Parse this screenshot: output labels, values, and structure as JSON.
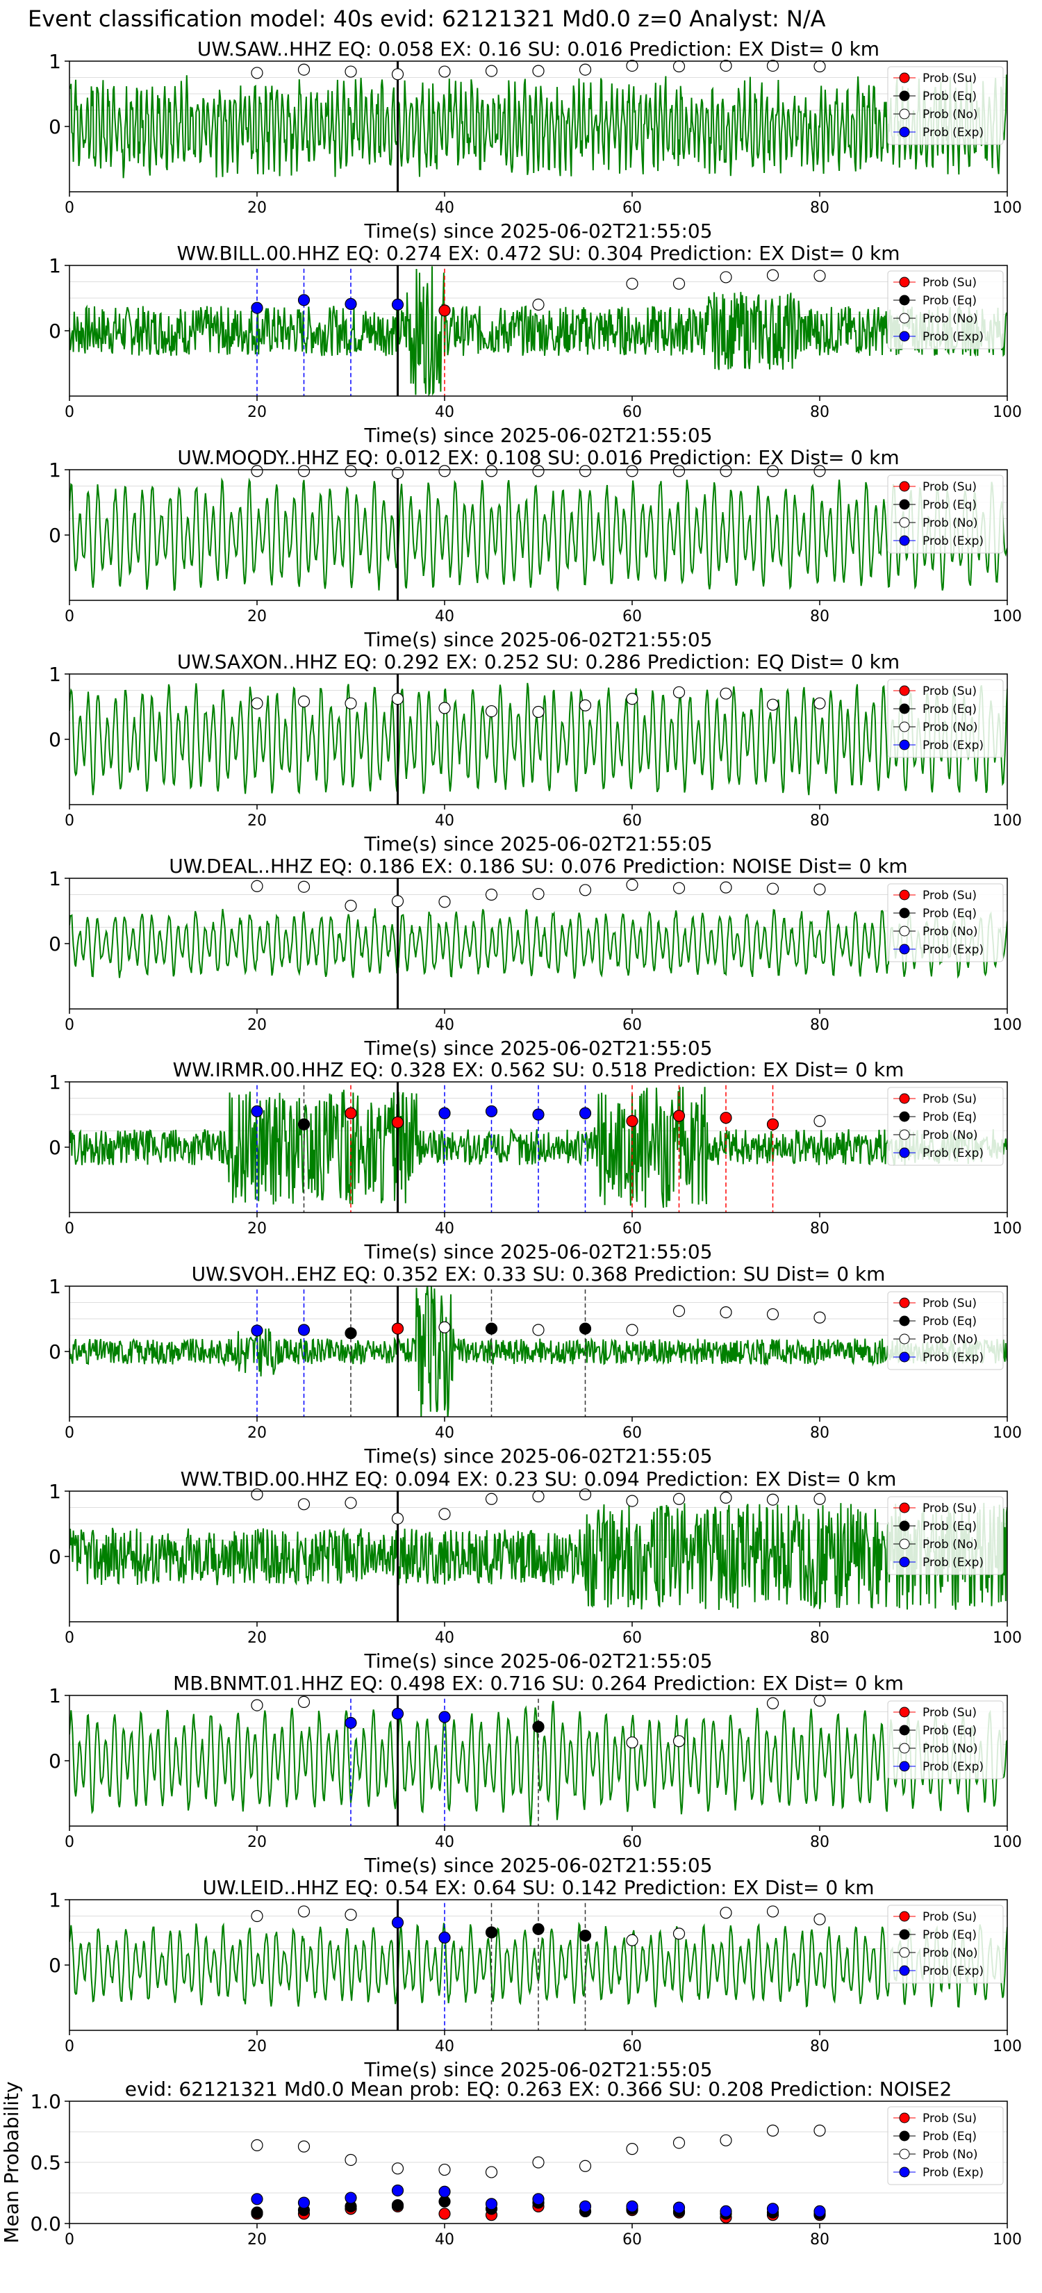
{
  "figure_title": "Event classification model: 40s evid: 62121321 Md0.0 z=0 Analyst: N/A",
  "legend_labels": [
    "Prob (Su)",
    "Prob (Eq)",
    "Prob (No)",
    "Prob (Exp)"
  ],
  "colors": {
    "trace": "#008000",
    "su": "#ff0000",
    "eq": "#000000",
    "no": "#ffffff",
    "exp": "#0000ff",
    "su_line": "#ff0000",
    "eq_line": "#333333",
    "exp_line": "#0000ff",
    "event_line": "#000000"
  },
  "chart_data": [
    {
      "type": "line",
      "title": "UW.SAW..HHZ   EQ: 0.058  EX: 0.16  SU: 0.016   Prediction: EX    Dist= 0 km",
      "xlabel": "Time(s) since 2025-06-02T21:55:05",
      "ylabel": "",
      "xlim": [
        0,
        100
      ],
      "ylim": [
        -1,
        1
      ],
      "xticks": [
        0,
        20,
        40,
        60,
        80,
        100
      ],
      "yticks": [
        0,
        1
      ],
      "event_time": 35,
      "grid": true,
      "legend": "top-right",
      "trace": {
        "kind": "medium",
        "amp": 0.7,
        "seed": 3
      },
      "points": [
        {
          "x": 20,
          "no": 0.82
        },
        {
          "x": 25,
          "no": 0.87
        },
        {
          "x": 30,
          "no": 0.84
        },
        {
          "x": 35,
          "no": 0.8
        },
        {
          "x": 40,
          "no": 0.84
        },
        {
          "x": 45,
          "no": 0.85
        },
        {
          "x": 50,
          "no": 0.85
        },
        {
          "x": 55,
          "no": 0.87
        },
        {
          "x": 60,
          "no": 0.93
        },
        {
          "x": 65,
          "no": 0.92
        },
        {
          "x": 70,
          "no": 0.93
        },
        {
          "x": 75,
          "no": 0.93
        },
        {
          "x": 80,
          "no": 0.92
        }
      ],
      "markers": []
    },
    {
      "type": "line",
      "title": "WW.BILL.00.HHZ   EQ: 0.274  EX: 0.472  SU: 0.304   Prediction: EX    Dist= 0 km",
      "xlabel": "Time(s) since 2025-06-02T21:55:05",
      "ylabel": "",
      "xlim": [
        0,
        100
      ],
      "ylim": [
        -1,
        1
      ],
      "xticks": [
        0,
        20,
        40,
        60,
        80,
        100
      ],
      "yticks": [
        0,
        1
      ],
      "event_time": 35,
      "grid": true,
      "legend": "top-right",
      "trace": {
        "kind": "noisy",
        "amp": 0.35,
        "seed": 7,
        "burst": [
          36,
          40,
          0.9
        ],
        "burst2": [
          68,
          78,
          0.55
        ]
      },
      "points": [
        {
          "x": 20,
          "exp": 0.35
        },
        {
          "x": 25,
          "exp": 0.47
        },
        {
          "x": 30,
          "exp": 0.41
        },
        {
          "x": 35,
          "exp": 0.4
        },
        {
          "x": 40,
          "su": 0.31
        },
        {
          "x": 50,
          "no": 0.4
        },
        {
          "x": 60,
          "no": 0.72
        },
        {
          "x": 65,
          "no": 0.72
        },
        {
          "x": 70,
          "no": 0.82
        },
        {
          "x": 75,
          "no": 0.85
        },
        {
          "x": 80,
          "no": 0.84
        }
      ],
      "markers": [
        {
          "x": 20,
          "cls": "exp"
        },
        {
          "x": 25,
          "cls": "exp"
        },
        {
          "x": 30,
          "cls": "exp"
        },
        {
          "x": 40,
          "cls": "su"
        }
      ]
    },
    {
      "type": "line",
      "title": "UW.MOODY..HHZ   EQ: 0.012  EX: 0.108  SU: 0.016   Prediction: EX    Dist= 0 km",
      "xlabel": "Time(s) since 2025-06-02T21:55:05",
      "ylabel": "",
      "xlim": [
        0,
        100
      ],
      "ylim": [
        -1,
        1
      ],
      "xticks": [
        0,
        20,
        40,
        60,
        80,
        100
      ],
      "yticks": [
        0,
        1
      ],
      "event_time": 35,
      "grid": true,
      "legend": "top-right",
      "trace": {
        "kind": "smooth",
        "amp": 0.75,
        "seed": 11
      },
      "points": [
        {
          "x": 20,
          "no": 0.98
        },
        {
          "x": 25,
          "no": 0.98
        },
        {
          "x": 30,
          "no": 0.98
        },
        {
          "x": 35,
          "no": 0.95
        },
        {
          "x": 40,
          "no": 0.98
        },
        {
          "x": 45,
          "no": 0.98
        },
        {
          "x": 50,
          "no": 0.98
        },
        {
          "x": 55,
          "no": 0.98
        },
        {
          "x": 60,
          "no": 0.98
        },
        {
          "x": 65,
          "no": 0.98
        },
        {
          "x": 70,
          "no": 0.98
        },
        {
          "x": 75,
          "no": 0.98
        },
        {
          "x": 80,
          "no": 0.98
        }
      ],
      "markers": []
    },
    {
      "type": "line",
      "title": "UW.SAXON..HHZ   EQ: 0.292  EX: 0.252  SU: 0.286   Prediction: EQ    Dist= 0 km",
      "xlabel": "Time(s) since 2025-06-02T21:55:05",
      "ylabel": "",
      "xlim": [
        0,
        100
      ],
      "ylim": [
        -1,
        1
      ],
      "xticks": [
        0,
        20,
        40,
        60,
        80,
        100
      ],
      "yticks": [
        0,
        1
      ],
      "event_time": 35,
      "grid": true,
      "legend": "top-right",
      "trace": {
        "kind": "smooth",
        "amp": 0.75,
        "seed": 19
      },
      "points": [
        {
          "x": 20,
          "no": 0.55
        },
        {
          "x": 25,
          "no": 0.58
        },
        {
          "x": 30,
          "no": 0.55
        },
        {
          "x": 35,
          "no": 0.62
        },
        {
          "x": 40,
          "no": 0.48
        },
        {
          "x": 45,
          "no": 0.43
        },
        {
          "x": 50,
          "no": 0.42
        },
        {
          "x": 55,
          "no": 0.52
        },
        {
          "x": 60,
          "no": 0.62
        },
        {
          "x": 65,
          "no": 0.72
        },
        {
          "x": 70,
          "no": 0.7
        },
        {
          "x": 75,
          "no": 0.53
        },
        {
          "x": 80,
          "no": 0.55
        }
      ],
      "markers": []
    },
    {
      "type": "line",
      "title": "UW.DEAL..HHZ   EQ: 0.186  EX: 0.186  SU: 0.076   Prediction: NOISE    Dist= 0 km",
      "xlabel": "Time(s) since 2025-06-02T21:55:05",
      "ylabel": "",
      "xlim": [
        0,
        100
      ],
      "ylim": [
        -1,
        1
      ],
      "xticks": [
        0,
        20,
        40,
        60,
        80,
        100
      ],
      "yticks": [
        0,
        1
      ],
      "event_time": 35,
      "grid": true,
      "legend": "top-right",
      "trace": {
        "kind": "smooth",
        "amp": 0.45,
        "seed": 23
      },
      "points": [
        {
          "x": 20,
          "no": 0.88
        },
        {
          "x": 25,
          "no": 0.87
        },
        {
          "x": 30,
          "no": 0.58
        },
        {
          "x": 35,
          "no": 0.65
        },
        {
          "x": 40,
          "no": 0.64
        },
        {
          "x": 45,
          "no": 0.75
        },
        {
          "x": 50,
          "no": 0.76
        },
        {
          "x": 55,
          "no": 0.82
        },
        {
          "x": 60,
          "no": 0.9
        },
        {
          "x": 65,
          "no": 0.85
        },
        {
          "x": 70,
          "no": 0.86
        },
        {
          "x": 75,
          "no": 0.84
        },
        {
          "x": 80,
          "no": 0.83
        }
      ],
      "markers": []
    },
    {
      "type": "line",
      "title": "WW.IRMR.00.HHZ   EQ: 0.328  EX: 0.562  SU: 0.518   Prediction: EX    Dist= 0 km",
      "xlabel": "Time(s) since 2025-06-02T21:55:05",
      "ylabel": "",
      "xlim": [
        0,
        100
      ],
      "ylim": [
        -1,
        1
      ],
      "xticks": [
        0,
        20,
        40,
        60,
        80,
        100
      ],
      "yticks": [
        0,
        1
      ],
      "event_time": 35,
      "grid": true,
      "legend": "top-right",
      "trace": {
        "kind": "noisy",
        "amp": 0.25,
        "seed": 29,
        "burst": [
          17,
          37,
          0.8
        ],
        "burst2": [
          56,
          68,
          0.85
        ]
      },
      "points": [
        {
          "x": 20,
          "exp": 0.55
        },
        {
          "x": 25,
          "eq": 0.35
        },
        {
          "x": 30,
          "su": 0.52
        },
        {
          "x": 35,
          "su": 0.38
        },
        {
          "x": 40,
          "exp": 0.52
        },
        {
          "x": 45,
          "exp": 0.55
        },
        {
          "x": 50,
          "exp": 0.5
        },
        {
          "x": 55,
          "exp": 0.52
        },
        {
          "x": 60,
          "su": 0.4
        },
        {
          "x": 65,
          "su": 0.48
        },
        {
          "x": 70,
          "su": 0.45
        },
        {
          "x": 75,
          "su": 0.35
        },
        {
          "x": 80,
          "no": 0.4
        }
      ],
      "markers": [
        {
          "x": 20,
          "cls": "exp"
        },
        {
          "x": 25,
          "cls": "eq"
        },
        {
          "x": 30,
          "cls": "su"
        },
        {
          "x": 40,
          "cls": "exp"
        },
        {
          "x": 45,
          "cls": "exp"
        },
        {
          "x": 50,
          "cls": "exp"
        },
        {
          "x": 55,
          "cls": "exp"
        },
        {
          "x": 60,
          "cls": "su"
        },
        {
          "x": 65,
          "cls": "su"
        },
        {
          "x": 70,
          "cls": "su"
        },
        {
          "x": 75,
          "cls": "su"
        }
      ]
    },
    {
      "type": "line",
      "title": "UW.SVOH..EHZ   EQ: 0.352  EX: 0.33  SU: 0.368   Prediction: SU    Dist= 0 km",
      "xlabel": "Time(s) since 2025-06-02T21:55:05",
      "ylabel": "",
      "xlim": [
        0,
        100
      ],
      "ylim": [
        -1,
        1
      ],
      "xticks": [
        0,
        20,
        40,
        60,
        80,
        100
      ],
      "yticks": [
        0,
        1
      ],
      "event_time": 35,
      "grid": true,
      "legend": "top-right",
      "trace": {
        "kind": "noisy",
        "amp": 0.18,
        "seed": 31,
        "burst": [
          37,
          41,
          0.95
        ],
        "burst2": [
          18,
          22,
          0.35
        ]
      },
      "points": [
        {
          "x": 20,
          "exp": 0.32
        },
        {
          "x": 25,
          "exp": 0.33
        },
        {
          "x": 30,
          "eq": 0.28
        },
        {
          "x": 35,
          "su": 0.35
        },
        {
          "x": 40,
          "no": 0.37
        },
        {
          "x": 45,
          "eq": 0.35
        },
        {
          "x": 50,
          "no": 0.33
        },
        {
          "x": 55,
          "eq": 0.35
        },
        {
          "x": 60,
          "no": 0.33
        },
        {
          "x": 65,
          "no": 0.62
        },
        {
          "x": 70,
          "no": 0.6
        },
        {
          "x": 75,
          "no": 0.57
        },
        {
          "x": 80,
          "no": 0.52
        }
      ],
      "markers": [
        {
          "x": 20,
          "cls": "exp"
        },
        {
          "x": 25,
          "cls": "exp"
        },
        {
          "x": 30,
          "cls": "eq"
        },
        {
          "x": 45,
          "cls": "eq"
        },
        {
          "x": 55,
          "cls": "eq"
        }
      ]
    },
    {
      "type": "line",
      "title": "WW.TBID.00.HHZ   EQ: 0.094  EX: 0.23  SU: 0.094   Prediction: EX    Dist= 0 km",
      "xlabel": "Time(s) since 2025-06-02T21:55:05",
      "ylabel": "",
      "xlim": [
        0,
        100
      ],
      "ylim": [
        -1,
        1
      ],
      "xticks": [
        0,
        20,
        40,
        60,
        80,
        100
      ],
      "yticks": [
        0,
        1
      ],
      "event_time": 35,
      "grid": true,
      "legend": "top-right",
      "trace": {
        "kind": "noisy",
        "amp": 0.4,
        "seed": 37,
        "burst": [
          55,
          100,
          0.75
        ]
      },
      "points": [
        {
          "x": 20,
          "no": 0.95
        },
        {
          "x": 25,
          "no": 0.8
        },
        {
          "x": 30,
          "no": 0.82
        },
        {
          "x": 35,
          "no": 0.58
        },
        {
          "x": 40,
          "no": 0.65
        },
        {
          "x": 45,
          "no": 0.88
        },
        {
          "x": 50,
          "no": 0.92
        },
        {
          "x": 55,
          "no": 0.95
        },
        {
          "x": 60,
          "no": 0.85
        },
        {
          "x": 65,
          "no": 0.88
        },
        {
          "x": 70,
          "no": 0.9
        },
        {
          "x": 75,
          "no": 0.87
        },
        {
          "x": 80,
          "no": 0.88
        }
      ],
      "markers": []
    },
    {
      "type": "line",
      "title": "MB.BNMT.01.HHZ   EQ: 0.498  EX: 0.716  SU: 0.264   Prediction: EX    Dist= 0 km",
      "xlabel": "Time(s) since 2025-06-02T21:55:05",
      "ylabel": "",
      "xlim": [
        0,
        100
      ],
      "ylim": [
        -1,
        1
      ],
      "xticks": [
        0,
        20,
        40,
        60,
        80,
        100
      ],
      "yticks": [
        0,
        1
      ],
      "event_time": 35,
      "grid": true,
      "legend": "top-right",
      "trace": {
        "kind": "smooth",
        "amp": 0.7,
        "seed": 41,
        "burst": [
          47,
          52,
          0.9
        ]
      },
      "points": [
        {
          "x": 20,
          "no": 0.85
        },
        {
          "x": 25,
          "no": 0.9
        },
        {
          "x": 30,
          "exp": 0.58
        },
        {
          "x": 35,
          "exp": 0.72
        },
        {
          "x": 40,
          "exp": 0.67
        },
        {
          "x": 50,
          "eq": 0.52
        },
        {
          "x": 60,
          "no": 0.28
        },
        {
          "x": 65,
          "no": 0.3
        },
        {
          "x": 75,
          "no": 0.88
        },
        {
          "x": 80,
          "no": 0.92
        }
      ],
      "markers": [
        {
          "x": 30,
          "cls": "exp"
        },
        {
          "x": 40,
          "cls": "exp"
        },
        {
          "x": 50,
          "cls": "eq"
        }
      ]
    },
    {
      "type": "line",
      "title": "UW.LEID..HHZ   EQ: 0.54  EX: 0.64  SU: 0.142   Prediction: EX    Dist= 0 km",
      "xlabel": "Time(s) since 2025-06-02T21:55:05",
      "ylabel": "",
      "xlim": [
        0,
        100
      ],
      "ylim": [
        -1,
        1
      ],
      "xticks": [
        0,
        20,
        40,
        60,
        80,
        100
      ],
      "yticks": [
        0,
        1
      ],
      "event_time": 35,
      "grid": true,
      "legend": "top-right",
      "trace": {
        "kind": "smooth",
        "amp": 0.55,
        "seed": 43
      },
      "points": [
        {
          "x": 20,
          "no": 0.75
        },
        {
          "x": 25,
          "no": 0.82
        },
        {
          "x": 30,
          "no": 0.77
        },
        {
          "x": 35,
          "exp": 0.65
        },
        {
          "x": 40,
          "exp": 0.42
        },
        {
          "x": 45,
          "eq": 0.5
        },
        {
          "x": 50,
          "eq": 0.55
        },
        {
          "x": 55,
          "eq": 0.45
        },
        {
          "x": 60,
          "no": 0.38
        },
        {
          "x": 65,
          "no": 0.48
        },
        {
          "x": 70,
          "no": 0.8
        },
        {
          "x": 75,
          "no": 0.82
        },
        {
          "x": 80,
          "no": 0.7
        }
      ],
      "markers": [
        {
          "x": 40,
          "cls": "exp"
        },
        {
          "x": 45,
          "cls": "eq"
        },
        {
          "x": 50,
          "cls": "eq"
        },
        {
          "x": 55,
          "cls": "eq"
        }
      ]
    },
    {
      "type": "scatter",
      "title": "evid: 62121321  Md0.0   Mean prob:   EQ: 0.263  EX: 0.366  SU: 0.208   Prediction: NOISE2",
      "xlabel": "",
      "ylabel": "Mean Probability",
      "xlim": [
        0,
        100
      ],
      "ylim": [
        0,
        1
      ],
      "xticks": [
        0,
        20,
        40,
        60,
        80,
        100
      ],
      "yticks": [
        0.0,
        0.5,
        1.0
      ],
      "grid": true,
      "legend": "top-right",
      "x": [
        20,
        25,
        30,
        35,
        40,
        45,
        50,
        55,
        60,
        65,
        70,
        75,
        80
      ],
      "series": [
        {
          "name": "Prob (Su)",
          "key": "su",
          "values": [
            0.08,
            0.08,
            0.12,
            0.14,
            0.08,
            0.07,
            0.14,
            0.1,
            0.11,
            0.09,
            0.05,
            0.07,
            0.07
          ]
        },
        {
          "name": "Prob (Eq)",
          "key": "eq",
          "values": [
            0.09,
            0.11,
            0.14,
            0.15,
            0.18,
            0.12,
            0.17,
            0.1,
            0.12,
            0.1,
            0.08,
            0.09,
            0.08
          ]
        },
        {
          "name": "Prob (No)",
          "key": "no",
          "values": [
            0.64,
            0.63,
            0.52,
            0.45,
            0.44,
            0.42,
            0.5,
            0.47,
            0.61,
            0.66,
            0.68,
            0.76,
            0.76
          ]
        },
        {
          "name": "Prob (Exp)",
          "key": "exp",
          "values": [
            0.2,
            0.17,
            0.21,
            0.27,
            0.26,
            0.16,
            0.2,
            0.14,
            0.14,
            0.13,
            0.1,
            0.12,
            0.1
          ]
        }
      ]
    }
  ]
}
